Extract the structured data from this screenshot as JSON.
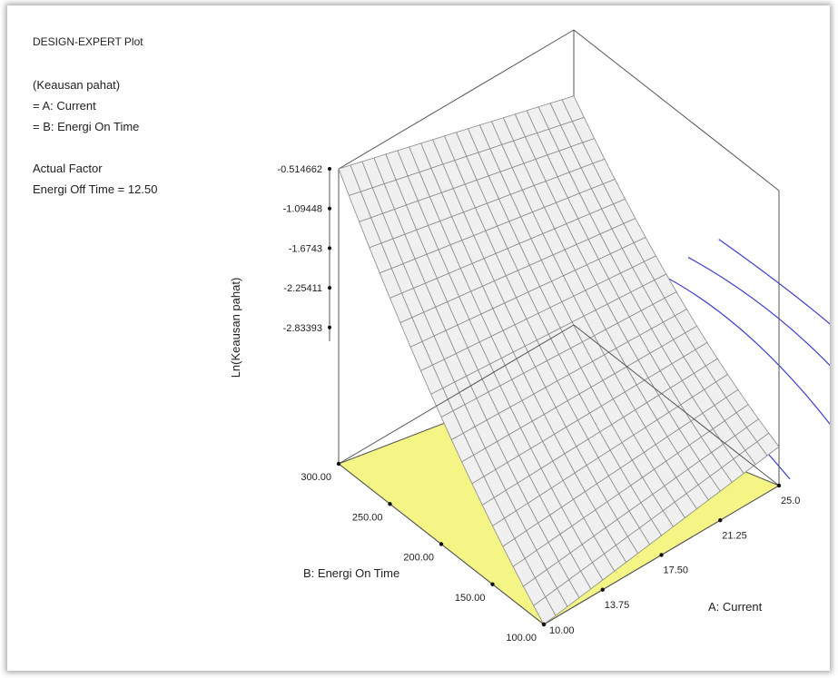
{
  "info": {
    "header": "DESIGN-EXPERT Plot",
    "response": "(Keausan pahat)",
    "x1": "= A: Current",
    "x2": "= B: Energi On Time",
    "actual_factor": "Actual Factor",
    "actual_value": "Energi Off Time = 12.50"
  },
  "chart_data": {
    "type": "surface",
    "title": "",
    "zlabel": "Ln(Keausan pahat)",
    "xlabel": "A: Current",
    "ylabel": "B: Energi On Time",
    "x_ticks": [
      "10.00",
      "13.75",
      "17.50",
      "21.25",
      "25.0"
    ],
    "y_ticks": [
      "100.00",
      "150.00",
      "200.00",
      "250.00",
      "300.00"
    ],
    "z_ticks": [
      "-0.514662",
      "-1.09448",
      "-1.6743",
      "-2.25411",
      "-2.83393"
    ],
    "xlim": [
      10,
      25
    ],
    "ylim": [
      100,
      300
    ],
    "zlim": [
      -3.4,
      -0.514662
    ],
    "surface_corners": {
      "A=10,B=300": -0.514662,
      "A=25,B=300": -1.16,
      "A=25,B=100": -3.02,
      "A=10,B=100": -3.4
    },
    "grid_resolution": 20,
    "colors": {
      "surface": "#f0f0f0",
      "mesh": "#8a8a8a",
      "contour_floor": "#f5f586",
      "contour_line": "#3e3ed0",
      "box": "#555555"
    }
  }
}
